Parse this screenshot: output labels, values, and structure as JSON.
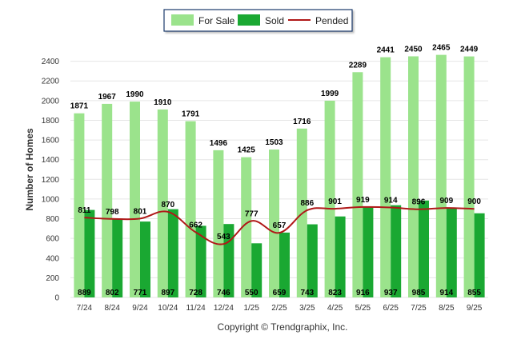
{
  "chart_data": {
    "type": "bar",
    "categories": [
      "7/24",
      "8/24",
      "9/24",
      "10/24",
      "11/24",
      "12/24",
      "1/25",
      "2/25",
      "3/25",
      "4/25",
      "5/25",
      "6/25",
      "7/25",
      "8/25",
      "9/25"
    ],
    "series": [
      {
        "name": "For Sale",
        "kind": "bar",
        "color": "#9be38c",
        "values": [
          1871,
          1967,
          1990,
          1910,
          1791,
          1496,
          1425,
          1503,
          1716,
          1999,
          2289,
          2441,
          2450,
          2465,
          2449
        ]
      },
      {
        "name": "Sold",
        "kind": "bar",
        "color": "#1aa832",
        "values": [
          889,
          802,
          771,
          897,
          728,
          746,
          550,
          659,
          743,
          823,
          916,
          937,
          985,
          914,
          855
        ]
      },
      {
        "name": "Pended",
        "kind": "line",
        "color": "#b01818",
        "values": [
          811,
          798,
          801,
          870,
          662,
          543,
          777,
          657,
          886,
          901,
          919,
          914,
          896,
          909,
          900
        ]
      }
    ],
    "title": "",
    "xlabel": "",
    "ylabel": "Number of Homes",
    "ylim": [
      0,
      2600
    ],
    "yticks": [
      0,
      200,
      400,
      600,
      800,
      1000,
      1200,
      1400,
      1600,
      1800,
      2000,
      2200,
      2400
    ],
    "grid": true,
    "legend_position": "top-center"
  },
  "footer": {
    "copyright": "Copyright © Trendgraphix, Inc."
  }
}
